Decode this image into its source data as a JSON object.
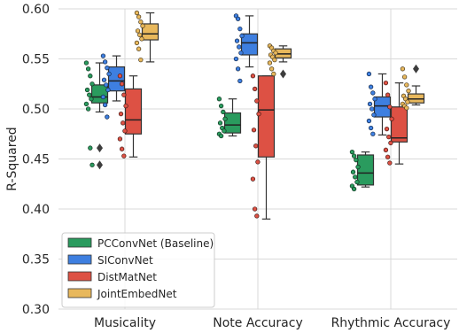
{
  "chart_data": {
    "type": "box",
    "ylabel": "R-Squared",
    "xlabel": "",
    "ylim": [
      0.3,
      0.6
    ],
    "yticks": [
      0.3,
      0.35,
      0.4,
      0.45,
      0.5,
      0.55,
      0.6
    ],
    "ytick_labels": [
      "0.30",
      "0.35",
      "0.40",
      "0.45",
      "0.50",
      "0.55",
      "0.60"
    ],
    "categories": [
      "Musicality",
      "Note Accuracy",
      "Rhythmic Accuracy"
    ],
    "grid": true,
    "legend_position": "bottom-left",
    "series": [
      {
        "name": "PCConvNet (Baseline)",
        "color": "#2a9b5e",
        "boxes": [
          {
            "whislo": 0.497,
            "q1": 0.506,
            "med": 0.512,
            "q3": 0.524,
            "whishi": 0.546,
            "fliers": [
              0.461,
              0.444
            ],
            "points": [
              0.546,
              0.54,
              0.533,
              0.525,
              0.519,
              0.514,
              0.51,
              0.505,
              0.5,
              0.461,
              0.444
            ]
          },
          {
            "whislo": 0.473,
            "q1": 0.476,
            "med": 0.484,
            "q3": 0.496,
            "whishi": 0.51,
            "fliers": [],
            "points": [
              0.51,
              0.503,
              0.497,
              0.49,
              0.486,
              0.481,
              0.478,
              0.475,
              0.473
            ]
          },
          {
            "whislo": 0.422,
            "q1": 0.424,
            "med": 0.436,
            "q3": 0.454,
            "whishi": 0.457,
            "fliers": [],
            "points": [
              0.457,
              0.453,
              0.449,
              0.442,
              0.437,
              0.432,
              0.427,
              0.423,
              0.42
            ]
          }
        ]
      },
      {
        "name": "SIConvNet",
        "color": "#3e7fe0",
        "boxes": [
          {
            "whislo": 0.508,
            "q1": 0.518,
            "med": 0.528,
            "q3": 0.542,
            "whishi": 0.553,
            "fliers": [],
            "points": [
              0.553,
              0.547,
              0.541,
              0.535,
              0.529,
              0.524,
              0.519,
              0.512,
              0.504,
              0.492
            ]
          },
          {
            "whislo": 0.542,
            "q1": 0.554,
            "med": 0.566,
            "q3": 0.575,
            "whishi": 0.593,
            "fliers": [],
            "points": [
              0.593,
              0.59,
              0.58,
              0.573,
              0.568,
              0.562,
              0.556,
              0.55,
              0.54,
              0.528
            ]
          },
          {
            "whislo": 0.474,
            "q1": 0.492,
            "med": 0.503,
            "q3": 0.512,
            "whishi": 0.535,
            "fliers": [],
            "points": [
              0.535,
              0.522,
              0.516,
              0.51,
              0.505,
              0.5,
              0.494,
              0.488,
              0.481,
              0.475
            ]
          }
        ]
      },
      {
        "name": "DistMatNet",
        "color": "#dd5144",
        "boxes": [
          {
            "whislo": 0.452,
            "q1": 0.475,
            "med": 0.489,
            "q3": 0.52,
            "whishi": 0.533,
            "fliers": [],
            "points": [
              0.533,
              0.525,
              0.514,
              0.503,
              0.495,
              0.486,
              0.478,
              0.47,
              0.46,
              0.453
            ]
          },
          {
            "whislo": 0.39,
            "q1": 0.452,
            "med": 0.499,
            "q3": 0.533,
            "whishi": 0.533,
            "fliers": [],
            "points": [
              0.533,
              0.52,
              0.508,
              0.495,
              0.479,
              0.463,
              0.447,
              0.43,
              0.4,
              0.393
            ]
          },
          {
            "whislo": 0.445,
            "q1": 0.467,
            "med": 0.471,
            "q3": 0.502,
            "whishi": 0.526,
            "fliers": [],
            "points": [
              0.526,
              0.514,
              0.502,
              0.49,
              0.48,
              0.472,
              0.466,
              0.459,
              0.452,
              0.446
            ]
          }
        ]
      },
      {
        "name": "JointEmbedNet",
        "color": "#e8b85c",
        "boxes": [
          {
            "whislo": 0.547,
            "q1": 0.569,
            "med": 0.575,
            "q3": 0.585,
            "whishi": 0.596,
            "fliers": [],
            "points": [
              0.596,
              0.592,
              0.587,
              0.583,
              0.578,
              0.574,
              0.57,
              0.566,
              0.56,
              0.549
            ]
          },
          {
            "whislo": 0.547,
            "q1": 0.551,
            "med": 0.555,
            "q3": 0.56,
            "whishi": 0.563,
            "fliers": [
              0.535
            ],
            "points": [
              0.563,
              0.561,
              0.558,
              0.556,
              0.554,
              0.552,
              0.549,
              0.546,
              0.54,
              0.535
            ]
          },
          {
            "whislo": 0.504,
            "q1": 0.506,
            "med": 0.51,
            "q3": 0.515,
            "whishi": 0.523,
            "fliers": [
              0.54
            ],
            "points": [
              0.54,
              0.532,
              0.524,
              0.518,
              0.513,
              0.51,
              0.507,
              0.505,
              0.503,
              0.501
            ]
          }
        ]
      }
    ]
  }
}
